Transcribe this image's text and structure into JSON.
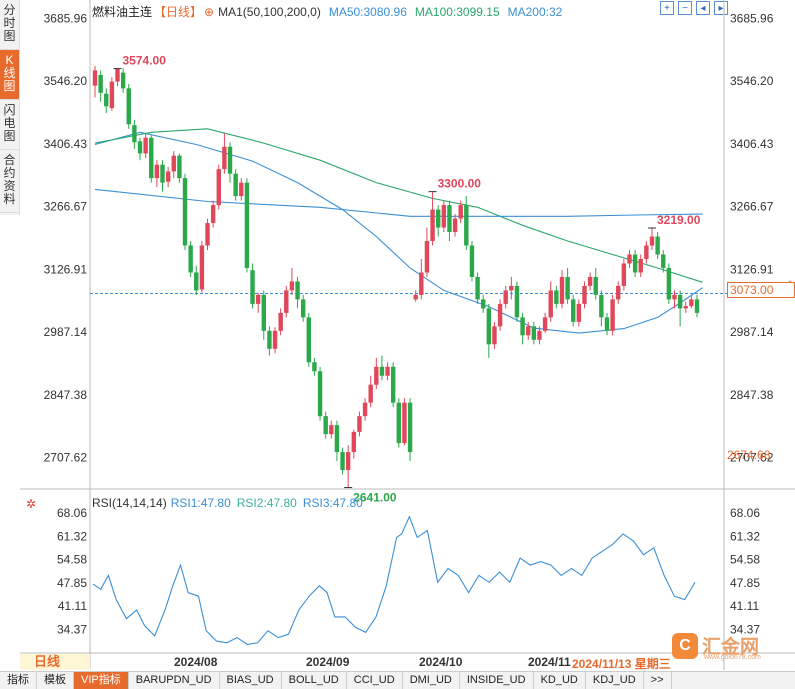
{
  "sidebar": {
    "tabs": [
      {
        "label": "分时图",
        "active": false
      },
      {
        "label": "K线图",
        "active": true
      },
      {
        "label": "闪电图",
        "active": false
      },
      {
        "label": "合约资料",
        "active": false
      }
    ]
  },
  "header": {
    "title": "燃料油主连",
    "period": "【日线】",
    "ma_toggle_icon": "circle-plus-icon",
    "ma1": "MA1(50,100,200,0)",
    "ma50": "MA50:3080.96",
    "ma100": "MA100:3099.15",
    "ma200": "MA200:32"
  },
  "zoom_icons": [
    "zoom-in-icon",
    "zoom-out-icon",
    "arrow-left-icon",
    "arrow-right-icon"
  ],
  "colors": {
    "up": "#e0475a",
    "down": "#2aa84a",
    "ma50": "#3b8fd6",
    "ma100": "#2aa66a",
    "ma200": "#3b8fd6",
    "rsi": "#3b8fd6",
    "accent": "#e86b2e"
  },
  "price_axis": {
    "labels": [
      "3685.96",
      "3546.20",
      "3406.43",
      "3266.67",
      "3126.91",
      "2987.14",
      "2847.38",
      "2707.62"
    ],
    "current_price": "3073.00",
    "current_low": "2674.68"
  },
  "annotations": {
    "high1": "3574.00",
    "high2": "3300.00",
    "high3": "3219.00",
    "low1": "2641.00"
  },
  "rsi": {
    "header": {
      "name": "RSI(14,14,14)",
      "rsi1": "RSI1:47.80",
      "rsi2": "RSI2:47.80",
      "rsi3": "RSI3:47.80"
    },
    "axis_labels": [
      "68.06",
      "61.32",
      "54.58",
      "47.85",
      "41.11",
      "34.37"
    ],
    "settings_icon": "gear-icon"
  },
  "dates": {
    "period_label": "日线",
    "items": [
      "2024/08",
      "2024/09",
      "2024/10",
      "2024/11"
    ],
    "current_date": "2024/11/13 星期三"
  },
  "bottom_tabs": [
    "指标",
    "模板",
    "VIP指标",
    "BARUPDN_UD",
    "BIAS_UD",
    "BOLL_UD",
    "CCI_UD",
    "DMI_UD",
    "INSIDE_UD",
    "KD_UD",
    "KDJ_UD",
    ">>"
  ],
  "watermark": {
    "logo": "C",
    "text": "汇金网",
    "sub": "www.gold678.com"
  },
  "chart_data": {
    "type": "candlestick",
    "ylim": [
      2640,
      3700
    ],
    "candles": [
      [
        3536,
        3570,
        3580,
        3510
      ],
      [
        3560,
        3520,
        3570,
        3500
      ],
      [
        3518,
        3490,
        3530,
        3475
      ],
      [
        3486,
        3545,
        3555,
        3480
      ],
      [
        3545,
        3574,
        3574,
        3535
      ],
      [
        3565,
        3530,
        3575,
        3520
      ],
      [
        3530,
        3450,
        3540,
        3440
      ],
      [
        3448,
        3410,
        3460,
        3395
      ],
      [
        3412,
        3385,
        3420,
        3370
      ],
      [
        3385,
        3420,
        3430,
        3375
      ],
      [
        3420,
        3330,
        3425,
        3320
      ],
      [
        3330,
        3360,
        3370,
        3310
      ],
      [
        3360,
        3320,
        3370,
        3300
      ],
      [
        3322,
        3345,
        3355,
        3310
      ],
      [
        3345,
        3380,
        3390,
        3330
      ],
      [
        3380,
        3330,
        3385,
        3320
      ],
      [
        3330,
        3180,
        3340,
        3170
      ],
      [
        3180,
        3120,
        3190,
        3110
      ],
      [
        3120,
        3080,
        3135,
        3070
      ],
      [
        3082,
        3180,
        3190,
        3075
      ],
      [
        3180,
        3230,
        3240,
        3170
      ],
      [
        3230,
        3270,
        3280,
        3220
      ],
      [
        3270,
        3350,
        3360,
        3260
      ],
      [
        3350,
        3400,
        3430,
        3340
      ],
      [
        3400,
        3340,
        3410,
        3320
      ],
      [
        3340,
        3290,
        3350,
        3280
      ],
      [
        3290,
        3320,
        3330,
        3280
      ],
      [
        3320,
        3130,
        3330,
        3120
      ],
      [
        3125,
        3050,
        3140,
        3040
      ],
      [
        3050,
        3070,
        3075,
        3030
      ],
      [
        3070,
        2990,
        3080,
        2970
      ],
      [
        2990,
        2950,
        3000,
        2935
      ],
      [
        2950,
        2990,
        2998,
        2940
      ],
      [
        2990,
        3030,
        3040,
        2980
      ],
      [
        3030,
        3080,
        3090,
        3020
      ],
      [
        3080,
        3100,
        3130,
        3070
      ],
      [
        3100,
        3060,
        3110,
        3040
      ],
      [
        3060,
        3020,
        3070,
        3010
      ],
      [
        3020,
        2920,
        3030,
        2910
      ],
      [
        2920,
        2900,
        2930,
        2890
      ],
      [
        2900,
        2800,
        2910,
        2790
      ],
      [
        2800,
        2760,
        2810,
        2750
      ],
      [
        2760,
        2780,
        2790,
        2750
      ],
      [
        2780,
        2720,
        2790,
        2700
      ],
      [
        2720,
        2680,
        2730,
        2670
      ],
      [
        2680,
        2720,
        2735,
        2641
      ],
      [
        2720,
        2765,
        2770,
        2705
      ],
      [
        2765,
        2800,
        2810,
        2755
      ],
      [
        2800,
        2830,
        2840,
        2790
      ],
      [
        2830,
        2870,
        2890,
        2820
      ],
      [
        2870,
        2910,
        2930,
        2860
      ],
      [
        2910,
        2890,
        2935,
        2880
      ],
      [
        2890,
        2910,
        2920,
        2880
      ],
      [
        2910,
        2830,
        2920,
        2820
      ],
      [
        2830,
        2740,
        2840,
        2730
      ],
      [
        2740,
        2830,
        2840,
        2735
      ],
      [
        2830,
        2720,
        2840,
        2700
      ],
      [
        3060,
        3070,
        3080,
        3055
      ],
      [
        3070,
        3120,
        3150,
        3060
      ],
      [
        3120,
        3190,
        3220,
        3110
      ],
      [
        3190,
        3260,
        3300,
        3180
      ],
      [
        3260,
        3220,
        3270,
        3200
      ],
      [
        3220,
        3270,
        3280,
        3210
      ],
      [
        3270,
        3210,
        3280,
        3190
      ],
      [
        3210,
        3240,
        3250,
        3200
      ],
      [
        3240,
        3270,
        3280,
        3230
      ],
      [
        3270,
        3180,
        3290,
        3170
      ],
      [
        3180,
        3110,
        3190,
        3100
      ],
      [
        3110,
        3060,
        3120,
        3050
      ],
      [
        3060,
        3040,
        3070,
        3030
      ],
      [
        3040,
        2960,
        3050,
        2930
      ],
      [
        2960,
        3000,
        3010,
        2950
      ],
      [
        3000,
        3050,
        3060,
        2990
      ],
      [
        3050,
        3080,
        3090,
        3040
      ],
      [
        3080,
        3090,
        3110,
        3060
      ],
      [
        3090,
        3020,
        3100,
        3010
      ],
      [
        3020,
        2980,
        3030,
        2960
      ],
      [
        2980,
        3000,
        3010,
        2970
      ],
      [
        3000,
        2970,
        3010,
        2960
      ],
      [
        2970,
        2990,
        3000,
        2960
      ],
      [
        2990,
        3020,
        3030,
        2985
      ],
      [
        3020,
        3080,
        3100,
        3010
      ],
      [
        3080,
        3050,
        3090,
        3040
      ],
      [
        3050,
        3110,
        3125,
        3040
      ],
      [
        3110,
        3060,
        3130,
        3050
      ],
      [
        3060,
        3010,
        3070,
        3000
      ],
      [
        3010,
        3050,
        3060,
        3000
      ],
      [
        3050,
        3090,
        3100,
        3040
      ],
      [
        3090,
        3110,
        3120,
        3080
      ],
      [
        3110,
        3070,
        3130,
        3060
      ],
      [
        3070,
        3020,
        3080,
        3000
      ],
      [
        3020,
        2990,
        3030,
        2980
      ],
      [
        2990,
        3060,
        3070,
        2980
      ],
      [
        3060,
        3090,
        3100,
        3050
      ],
      [
        3090,
        3140,
        3150,
        3080
      ],
      [
        3140,
        3160,
        3170,
        3130
      ],
      [
        3160,
        3120,
        3170,
        3110
      ],
      [
        3120,
        3150,
        3160,
        3110
      ],
      [
        3150,
        3180,
        3190,
        3140
      ],
      [
        3180,
        3200,
        3219,
        3170
      ],
      [
        3200,
        3160,
        3210,
        3150
      ],
      [
        3160,
        3130,
        3170,
        3120
      ],
      [
        3130,
        3060,
        3140,
        3050
      ],
      [
        3060,
        3070,
        3080,
        3040
      ],
      [
        3070,
        3040,
        3080,
        3000
      ],
      [
        3040,
        3045,
        3055,
        3030
      ],
      [
        3045,
        3060,
        3070,
        3040
      ],
      [
        3060,
        3030,
        3070,
        3020
      ]
    ],
    "ma50": [
      [
        0,
        3405
      ],
      [
        8,
        3432
      ],
      [
        18,
        3405
      ],
      [
        28,
        3368
      ],
      [
        36,
        3320
      ],
      [
        44,
        3260
      ],
      [
        50,
        3200
      ],
      [
        56,
        3130
      ],
      [
        62,
        3080
      ],
      [
        70,
        3044
      ],
      [
        78,
        2996
      ],
      [
        86,
        2985
      ],
      [
        94,
        2995
      ],
      [
        100,
        3020
      ],
      [
        104,
        3052
      ],
      [
        108,
        3086
      ]
    ],
    "ma100": [
      [
        0,
        3408
      ],
      [
        10,
        3432
      ],
      [
        20,
        3440
      ],
      [
        30,
        3408
      ],
      [
        40,
        3370
      ],
      [
        50,
        3320
      ],
      [
        60,
        3285
      ],
      [
        68,
        3265
      ],
      [
        76,
        3225
      ],
      [
        84,
        3190
      ],
      [
        92,
        3160
      ],
      [
        100,
        3130
      ],
      [
        108,
        3098
      ]
    ],
    "ma200": [
      [
        0,
        3305
      ],
      [
        20,
        3278
      ],
      [
        40,
        3265
      ],
      [
        56,
        3245
      ],
      [
        64,
        3245
      ],
      [
        72,
        3245
      ],
      [
        84,
        3245
      ],
      [
        96,
        3248
      ],
      [
        108,
        3250
      ]
    ],
    "rsi": [
      [
        0,
        47.5
      ],
      [
        3,
        46
      ],
      [
        6,
        50
      ],
      [
        9,
        43
      ],
      [
        13,
        37.5
      ],
      [
        17,
        40
      ],
      [
        20,
        35.5
      ],
      [
        24,
        32.5
      ],
      [
        28,
        40
      ],
      [
        31,
        47
      ],
      [
        34,
        53
      ],
      [
        37,
        45
      ],
      [
        41,
        44
      ],
      [
        44,
        34
      ],
      [
        48,
        31
      ],
      [
        52,
        30.5
      ],
      [
        56,
        32
      ],
      [
        60,
        30
      ],
      [
        64,
        30.5
      ],
      [
        68,
        34
      ],
      [
        72,
        32
      ],
      [
        76,
        33
      ],
      [
        80,
        40
      ],
      [
        84,
        44
      ],
      [
        88,
        47
      ],
      [
        91,
        45
      ],
      [
        94,
        38
      ],
      [
        98,
        38
      ],
      [
        102,
        35
      ],
      [
        106,
        33.5
      ],
      [
        110,
        38
      ],
      [
        114,
        47
      ],
      [
        118,
        61
      ],
      [
        120,
        62
      ],
      [
        123,
        67
      ],
      [
        126,
        61
      ],
      [
        130,
        63
      ],
      [
        134,
        48
      ],
      [
        138,
        52
      ],
      [
        142,
        50
      ],
      [
        146,
        45
      ],
      [
        150,
        50
      ],
      [
        154,
        48
      ],
      [
        158,
        51
      ],
      [
        162,
        48
      ],
      [
        166,
        55
      ],
      [
        170,
        53
      ],
      [
        174,
        54
      ],
      [
        178,
        53
      ],
      [
        182,
        50
      ],
      [
        186,
        52
      ],
      [
        190,
        50
      ],
      [
        194,
        55
      ],
      [
        198,
        57
      ],
      [
        202,
        59
      ],
      [
        206,
        62
      ],
      [
        210,
        60
      ],
      [
        214,
        56
      ],
      [
        218,
        58
      ],
      [
        222,
        50
      ],
      [
        226,
        44
      ],
      [
        230,
        43
      ],
      [
        234,
        48
      ]
    ]
  }
}
